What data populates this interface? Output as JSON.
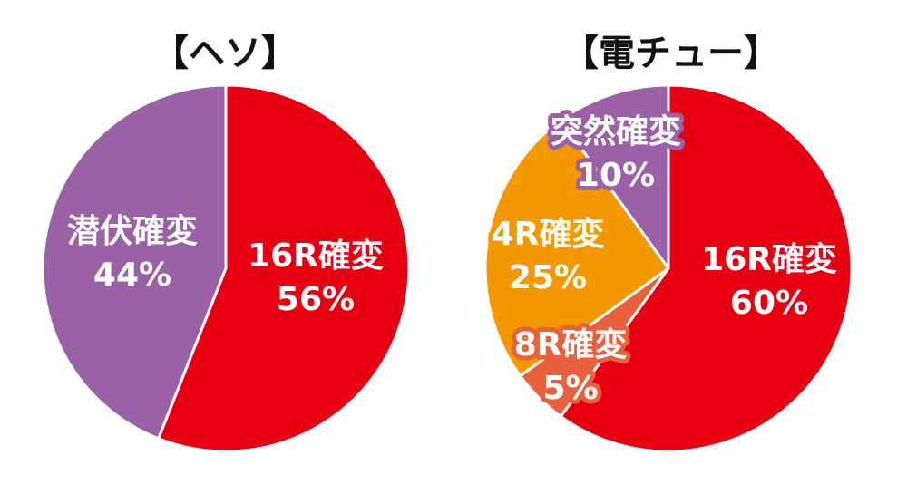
{
  "chart_data": [
    {
      "type": "pie",
      "title": "【ヘソ】",
      "slices": [
        {
          "label": "16R確変",
          "value": 56,
          "display": "56%",
          "color": "#e60012"
        },
        {
          "label": "潜伏確変",
          "value": 44,
          "display": "44%",
          "color": "#9b61a6"
        }
      ]
    },
    {
      "type": "pie",
      "title": "【電チュー】",
      "slices": [
        {
          "label": "16R確変",
          "value": 60,
          "display": "60%",
          "color": "#e60012"
        },
        {
          "label": "8R確変",
          "value": 5,
          "display": "5%",
          "color": "#e8603c"
        },
        {
          "label": "4R確変",
          "value": 25,
          "display": "25%",
          "color": "#f39800"
        },
        {
          "label": "突然確変",
          "value": 10,
          "display": "10%",
          "color": "#9b61a6"
        }
      ]
    }
  ]
}
